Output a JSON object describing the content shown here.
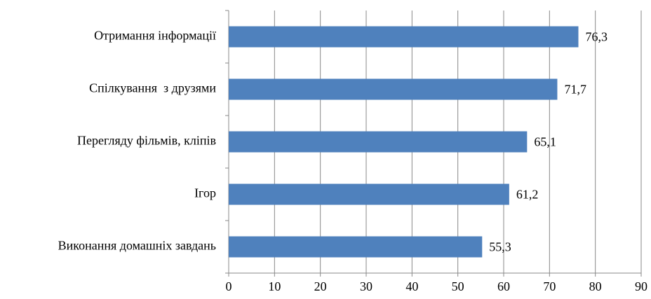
{
  "chart_data": {
    "type": "bar",
    "orientation": "horizontal",
    "categories": [
      "Отримання інформації",
      "Спілкування  з друзями",
      "Перегляду фільмів, кліпів",
      "Ігор",
      "Виконання домашніх завдань"
    ],
    "values": [
      76.3,
      71.7,
      65.1,
      61.2,
      55.3
    ],
    "value_labels": [
      "76,3",
      "71,7",
      "65,1",
      "61,2",
      "55,3"
    ],
    "color": "#4f81bd",
    "xlim": [
      0,
      90
    ],
    "xticks": [
      0,
      10,
      20,
      30,
      40,
      50,
      60,
      70,
      80,
      90
    ],
    "grid": true
  }
}
